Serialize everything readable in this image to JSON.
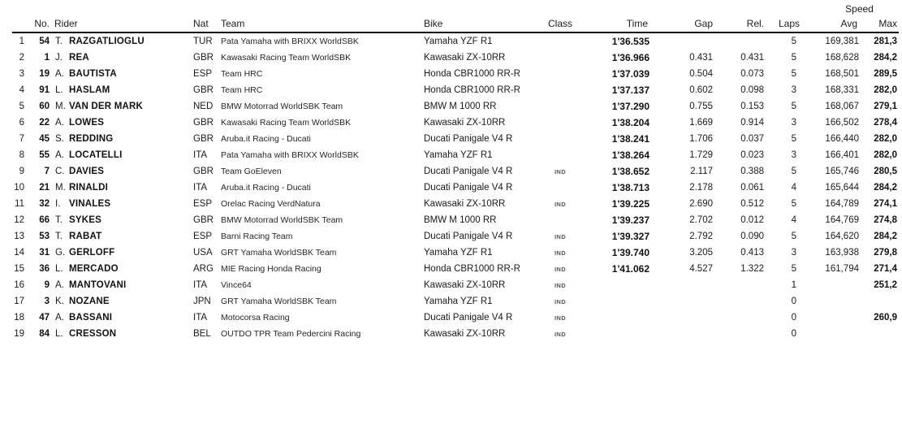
{
  "colors": {
    "background": "#ffffff",
    "header_rule": "#0d0d0d",
    "text": "#1a1a1a",
    "muted_class_label": "#555555"
  },
  "table": {
    "header": {
      "speed_group": "Speed",
      "no": "No.",
      "rider": "Rider",
      "nat": "Nat",
      "team": "Team",
      "bike": "Bike",
      "class": "Class",
      "time": "Time",
      "gap": "Gap",
      "rel": "Rel.",
      "laps": "Laps",
      "avg": "Avg",
      "max": "Max"
    },
    "rows": [
      {
        "pos": "1",
        "no": "54",
        "initial": "T.",
        "name": "RAZGATLIOGLU",
        "nat": "TUR",
        "team": "Pata Yamaha with BRIXX WorldSBK",
        "bike": "Yamaha YZF R1",
        "class": "",
        "time": "1'36.535",
        "gap": "",
        "rel": "",
        "laps": "5",
        "avg": "169,381",
        "max": "281,3"
      },
      {
        "pos": "2",
        "no": "1",
        "initial": "J.",
        "name": "REA",
        "nat": "GBR",
        "team": "Kawasaki Racing Team WorldSBK",
        "bike": "Kawasaki ZX-10RR",
        "class": "",
        "time": "1'36.966",
        "gap": "0.431",
        "rel": "0.431",
        "laps": "5",
        "avg": "168,628",
        "max": "284,2"
      },
      {
        "pos": "3",
        "no": "19",
        "initial": "A.",
        "name": "BAUTISTA",
        "nat": "ESP",
        "team": "Team HRC",
        "bike": "Honda CBR1000 RR-R",
        "class": "",
        "time": "1'37.039",
        "gap": "0.504",
        "rel": "0.073",
        "laps": "5",
        "avg": "168,501",
        "max": "289,5"
      },
      {
        "pos": "4",
        "no": "91",
        "initial": "L.",
        "name": "HASLAM",
        "nat": "GBR",
        "team": "Team HRC",
        "bike": "Honda CBR1000 RR-R",
        "class": "",
        "time": "1'37.137",
        "gap": "0.602",
        "rel": "0.098",
        "laps": "3",
        "avg": "168,331",
        "max": "282,0"
      },
      {
        "pos": "5",
        "no": "60",
        "initial": "M.",
        "name": "VAN DER MARK",
        "nat": "NED",
        "team": "BMW Motorrad WorldSBK Team",
        "bike": "BMW M 1000 RR",
        "class": "",
        "time": "1'37.290",
        "gap": "0.755",
        "rel": "0.153",
        "laps": "5",
        "avg": "168,067",
        "max": "279,1"
      },
      {
        "pos": "6",
        "no": "22",
        "initial": "A.",
        "name": "LOWES",
        "nat": "GBR",
        "team": "Kawasaki Racing Team WorldSBK",
        "bike": "Kawasaki ZX-10RR",
        "class": "",
        "time": "1'38.204",
        "gap": "1.669",
        "rel": "0.914",
        "laps": "3",
        "avg": "166,502",
        "max": "278,4"
      },
      {
        "pos": "7",
        "no": "45",
        "initial": "S.",
        "name": "REDDING",
        "nat": "GBR",
        "team": "Aruba.it Racing - Ducati",
        "bike": "Ducati Panigale V4 R",
        "class": "",
        "time": "1'38.241",
        "gap": "1.706",
        "rel": "0.037",
        "laps": "5",
        "avg": "166,440",
        "max": "282,0"
      },
      {
        "pos": "8",
        "no": "55",
        "initial": "A.",
        "name": "LOCATELLI",
        "nat": "ITA",
        "team": "Pata Yamaha with BRIXX WorldSBK",
        "bike": "Yamaha YZF R1",
        "class": "",
        "time": "1'38.264",
        "gap": "1.729",
        "rel": "0.023",
        "laps": "3",
        "avg": "166,401",
        "max": "282,0"
      },
      {
        "pos": "9",
        "no": "7",
        "initial": "C.",
        "name": "DAVIES",
        "nat": "GBR",
        "team": "Team GoEleven",
        "bike": "Ducati Panigale V4 R",
        "class": "IND",
        "time": "1'38.652",
        "gap": "2.117",
        "rel": "0.388",
        "laps": "5",
        "avg": "165,746",
        "max": "280,5"
      },
      {
        "pos": "10",
        "no": "21",
        "initial": "M.",
        "name": "RINALDI",
        "nat": "ITA",
        "team": "Aruba.it Racing - Ducati",
        "bike": "Ducati Panigale V4 R",
        "class": "",
        "time": "1'38.713",
        "gap": "2.178",
        "rel": "0.061",
        "laps": "4",
        "avg": "165,644",
        "max": "284,2"
      },
      {
        "pos": "11",
        "no": "32",
        "initial": "I.",
        "name": "VINALES",
        "nat": "ESP",
        "team": "Orelac Racing VerdNatura",
        "bike": "Kawasaki ZX-10RR",
        "class": "IND",
        "time": "1'39.225",
        "gap": "2.690",
        "rel": "0.512",
        "laps": "5",
        "avg": "164,789",
        "max": "274,1"
      },
      {
        "pos": "12",
        "no": "66",
        "initial": "T.",
        "name": "SYKES",
        "nat": "GBR",
        "team": "BMW Motorrad WorldSBK Team",
        "bike": "BMW M 1000 RR",
        "class": "",
        "time": "1'39.237",
        "gap": "2.702",
        "rel": "0.012",
        "laps": "4",
        "avg": "164,769",
        "max": "274,8"
      },
      {
        "pos": "13",
        "no": "53",
        "initial": "T.",
        "name": "RABAT",
        "nat": "ESP",
        "team": "Barni Racing Team",
        "bike": "Ducati Panigale V4 R",
        "class": "IND",
        "time": "1'39.327",
        "gap": "2.792",
        "rel": "0.090",
        "laps": "5",
        "avg": "164,620",
        "max": "284,2"
      },
      {
        "pos": "14",
        "no": "31",
        "initial": "G.",
        "name": "GERLOFF",
        "nat": "USA",
        "team": "GRT Yamaha WorldSBK Team",
        "bike": "Yamaha YZF R1",
        "class": "IND",
        "time": "1'39.740",
        "gap": "3.205",
        "rel": "0.413",
        "laps": "3",
        "avg": "163,938",
        "max": "279,8"
      },
      {
        "pos": "15",
        "no": "36",
        "initial": "L.",
        "name": "MERCADO",
        "nat": "ARG",
        "team": "MIE Racing Honda Racing",
        "bike": "Honda CBR1000 RR-R",
        "class": "IND",
        "time": "1'41.062",
        "gap": "4.527",
        "rel": "1.322",
        "laps": "5",
        "avg": "161,794",
        "max": "271,4"
      },
      {
        "pos": "16",
        "no": "9",
        "initial": "A.",
        "name": "MANTOVANI",
        "nat": "ITA",
        "team": "Vince64",
        "bike": "Kawasaki ZX-10RR",
        "class": "IND",
        "time": "",
        "gap": "",
        "rel": "",
        "laps": "1",
        "avg": "",
        "max": "251,2"
      },
      {
        "pos": "17",
        "no": "3",
        "initial": "K.",
        "name": "NOZANE",
        "nat": "JPN",
        "team": "GRT Yamaha WorldSBK Team",
        "bike": "Yamaha YZF R1",
        "class": "IND",
        "time": "",
        "gap": "",
        "rel": "",
        "laps": "0",
        "avg": "",
        "max": ""
      },
      {
        "pos": "18",
        "no": "47",
        "initial": "A.",
        "name": "BASSANI",
        "nat": "ITA",
        "team": "Motocorsa Racing",
        "bike": "Ducati Panigale V4 R",
        "class": "IND",
        "time": "",
        "gap": "",
        "rel": "",
        "laps": "0",
        "avg": "",
        "max": "260,9"
      },
      {
        "pos": "19",
        "no": "84",
        "initial": "L.",
        "name": "CRESSON",
        "nat": "BEL",
        "team": "OUTDO TPR Team Pedercini Racing",
        "bike": "Kawasaki ZX-10RR",
        "class": "IND",
        "time": "",
        "gap": "",
        "rel": "",
        "laps": "0",
        "avg": "",
        "max": ""
      }
    ]
  }
}
